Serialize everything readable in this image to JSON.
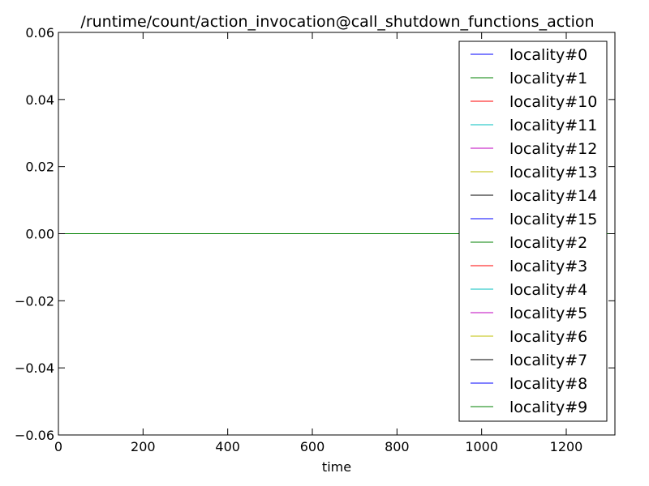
{
  "chart_data": {
    "type": "line",
    "title": "/runtime/count/action_invocation@call_shutdown_functions_action",
    "xlabel": "time",
    "ylabel": "",
    "xlim": [
      0,
      1315
    ],
    "ylim": [
      -0.06,
      0.06
    ],
    "xticks": [
      0,
      200,
      400,
      600,
      800,
      1000,
      1200
    ],
    "xtick_labels": [
      "0",
      "200",
      "400",
      "600",
      "800",
      "1000",
      "1200"
    ],
    "yticks": [
      -0.06,
      -0.04,
      -0.02,
      0.0,
      0.02,
      0.04,
      0.06
    ],
    "ytick_labels": [
      "−0.06",
      "−0.04",
      "−0.02",
      "0.00",
      "0.02",
      "0.04",
      "0.06"
    ],
    "grid": false,
    "legend_position": "top-right",
    "series": [
      {
        "name": "locality#0",
        "color": "#0000ff",
        "x": [
          0,
          1315
        ],
        "y": [
          0,
          0
        ]
      },
      {
        "name": "locality#1",
        "color": "#008000",
        "x": [
          0,
          1315
        ],
        "y": [
          0,
          0
        ]
      },
      {
        "name": "locality#10",
        "color": "#ff0000",
        "x": [
          0,
          1315
        ],
        "y": [
          0,
          0
        ]
      },
      {
        "name": "locality#11",
        "color": "#00bfbf",
        "x": [
          0,
          1315
        ],
        "y": [
          0,
          0
        ]
      },
      {
        "name": "locality#12",
        "color": "#bf00bf",
        "x": [
          0,
          1315
        ],
        "y": [
          0,
          0
        ]
      },
      {
        "name": "locality#13",
        "color": "#bfbf00",
        "x": [
          0,
          1315
        ],
        "y": [
          0,
          0
        ]
      },
      {
        "name": "locality#14",
        "color": "#000000",
        "x": [
          0,
          1315
        ],
        "y": [
          0,
          0
        ]
      },
      {
        "name": "locality#15",
        "color": "#0000ff",
        "x": [
          0,
          1315
        ],
        "y": [
          0,
          0
        ]
      },
      {
        "name": "locality#2",
        "color": "#008000",
        "x": [
          0,
          1315
        ],
        "y": [
          0,
          0
        ]
      },
      {
        "name": "locality#3",
        "color": "#ff0000",
        "x": [
          0,
          1315
        ],
        "y": [
          0,
          0
        ]
      },
      {
        "name": "locality#4",
        "color": "#00bfbf",
        "x": [
          0,
          1315
        ],
        "y": [
          0,
          0
        ]
      },
      {
        "name": "locality#5",
        "color": "#bf00bf",
        "x": [
          0,
          1315
        ],
        "y": [
          0,
          0
        ]
      },
      {
        "name": "locality#6",
        "color": "#bfbf00",
        "x": [
          0,
          1315
        ],
        "y": [
          0,
          0
        ]
      },
      {
        "name": "locality#7",
        "color": "#000000",
        "x": [
          0,
          1315
        ],
        "y": [
          0,
          0
        ]
      },
      {
        "name": "locality#8",
        "color": "#0000ff",
        "x": [
          0,
          1315
        ],
        "y": [
          0,
          0
        ]
      },
      {
        "name": "locality#9",
        "color": "#008000",
        "x": [
          0,
          1315
        ],
        "y": [
          0,
          0
        ]
      }
    ]
  }
}
